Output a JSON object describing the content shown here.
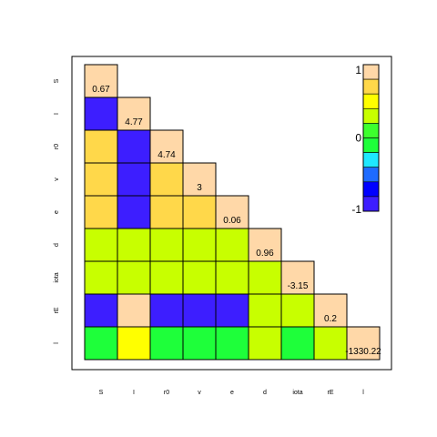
{
  "chart_data": {
    "type": "heatmap",
    "variables": [
      "S",
      "I",
      "r0",
      "v",
      "e",
      "d",
      "iota",
      "rE",
      "l"
    ],
    "diagonal_labels": [
      "0.67",
      "4.77",
      "4.74",
      "3",
      "0.06",
      "0.96",
      "-3.15",
      "0.2",
      "-1330.22"
    ],
    "lower_triangle": [
      [],
      [
        -0.85
      ],
      [
        0.7,
        -0.88
      ],
      [
        0.7,
        -0.92,
        0.7
      ],
      [
        0.7,
        -1.0,
        0.7,
        0.7
      ],
      [
        0.35,
        0.25,
        0.35,
        0.35,
        0.35
      ],
      [
        0.35,
        0.25,
        0.35,
        0.35,
        0.35,
        0.25
      ],
      [
        -0.85,
        0.82,
        -0.88,
        -0.92,
        -0.94,
        0.25,
        0.25
      ],
      [
        -0.12,
        0.55,
        -0.12,
        -0.12,
        -0.12,
        0.25,
        -0.12,
        0.35
      ]
    ],
    "diagonal_color": "#FFD8A8",
    "legend": {
      "placement": "top-right",
      "tick_labels": [
        "1",
        "0",
        "-1"
      ],
      "colors": [
        "#FFD8A8",
        "#FFD84A",
        "#FFFF00",
        "#C8FF00",
        "#3DFF2E",
        "#1EFF3A",
        "#1EE8FF",
        "#1E6BFF",
        "#0000FF",
        "#3D1EFF"
      ]
    }
  }
}
